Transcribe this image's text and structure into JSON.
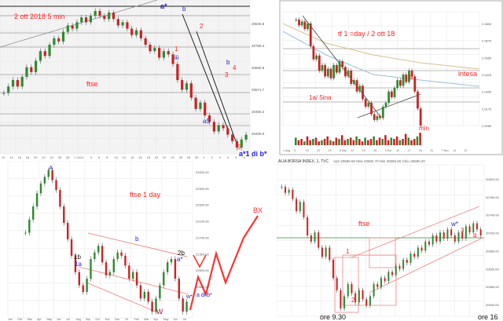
{
  "colors": {
    "up": "#2e8b2e",
    "down": "#cc2222",
    "annot_red": "#ff2222",
    "annot_blue": "#2222cc",
    "wick": "#555555",
    "grid": "#e4e4e4",
    "trendline": "#222222",
    "channel": "#ee8888",
    "bx": "#ff3333"
  },
  "chart_data": [
    {
      "id": "ftse-5min",
      "type": "candlestick",
      "title": "2 ott 2018   5 min",
      "series_label": "ftse",
      "y_ticks": [
        "20825.8",
        "20759.4",
        "20660.9",
        "20571.7",
        "20460.2",
        "20400.0"
      ],
      "x_ticks": [
        "12",
        "14",
        "16",
        "18",
        "20",
        "22",
        "24",
        "26",
        "28",
        "1 Oct",
        "2",
        "4",
        "6",
        "8",
        "10",
        "12",
        "14",
        "16",
        "18",
        "20",
        "22",
        "24",
        "26",
        "28",
        "30",
        "1",
        "2",
        "3",
        "4",
        "5",
        "6",
        "7"
      ],
      "closes": [
        20560,
        20580,
        20600,
        20580,
        20610,
        20640,
        20625,
        20660,
        20690,
        20675,
        20710,
        20730,
        20720,
        20750,
        20770,
        20760,
        20780,
        20795,
        20780,
        20800,
        20815,
        20800,
        20790,
        20810,
        20790,
        20770,
        20780,
        20760,
        20740,
        20755,
        20730,
        20710,
        20690,
        20700,
        20670,
        20690,
        20680,
        20650,
        20600,
        20570,
        20590,
        20545,
        20510,
        20530,
        20490,
        20470,
        20440,
        20460,
        20450,
        20430,
        20410,
        20390,
        20415,
        20430
      ],
      "annotations": [
        "a*",
        "b",
        "1",
        "2",
        "iii",
        "3",
        "b",
        "4",
        "a5",
        "5",
        "a*1 di b*"
      ]
    },
    {
      "id": "intesa",
      "type": "candlestick",
      "title": "tf 1 =day  /  2 ott 18",
      "series_label": "intesa",
      "y_ticks": [
        "2.0800",
        "2.0675",
        "2.0550",
        "2.0425",
        "2.0300",
        "2.0175",
        "2.0050"
      ],
      "x_ticks": [
        "1 Aug",
        "8",
        "15",
        "22",
        "29",
        "5 Sep",
        "12",
        "19",
        "26",
        "3 Oct",
        "10",
        "17",
        "24",
        "31",
        "7 Nov",
        "14",
        "21"
      ],
      "closes": [
        2.082,
        2.079,
        2.081,
        2.077,
        2.08,
        2.068,
        2.061,
        2.063,
        2.055,
        2.058,
        2.052,
        2.056,
        2.051,
        2.058,
        2.054,
        2.06,
        2.057,
        2.052,
        2.055,
        2.048,
        2.05,
        2.044,
        2.047,
        2.04,
        2.036,
        2.038,
        2.032,
        2.029,
        2.031,
        2.03,
        2.036,
        2.038,
        2.044,
        2.041,
        2.046,
        2.05,
        2.047,
        2.053,
        2.049,
        2.055,
        2.052,
        2.044,
        2.035,
        2.026
      ],
      "volumes": [
        6,
        4,
        5,
        3,
        7,
        4,
        5,
        6,
        3,
        4,
        5,
        7,
        4,
        3,
        6,
        5,
        8,
        4,
        5,
        6,
        4,
        7,
        5,
        3,
        6,
        4,
        5,
        7,
        4,
        6,
        5,
        8,
        4,
        6,
        5,
        7,
        4,
        5,
        9,
        6,
        4,
        5,
        7,
        10
      ],
      "annotations": [
        "1a/ 5ina",
        "b",
        "min"
      ]
    },
    {
      "id": "ftse-1day",
      "type": "candlestick",
      "title": "ftse   1 day",
      "y_ticks": [
        "23300.00",
        "22900.00",
        "22500.00",
        "22100.00",
        "21700.00",
        "21300.00",
        "20900.00",
        "20500.00"
      ],
      "x_ticks": [
        "Jan",
        "Feb",
        "Mar",
        "Apr",
        "May",
        "Jun",
        "Jul",
        "Aug",
        "Sep",
        "Oct",
        "Nov",
        "Dec",
        "'19",
        "Feb",
        "Mar",
        "Apr",
        "May",
        "Jun",
        "Jul"
      ],
      "closes": [
        22300,
        22500,
        22700,
        22900,
        23050,
        23150,
        23250,
        23100,
        22950,
        22700,
        22450,
        22200,
        21950,
        21700,
        21500,
        21400,
        21600,
        21900,
        22000,
        22100,
        21850,
        21650,
        21700,
        21900,
        22000,
        21950,
        21800,
        21600,
        21700,
        21500,
        21300,
        21400,
        21250,
        21100,
        21300,
        21500,
        21700,
        21850,
        21900,
        21600,
        21300,
        21100,
        21250
      ],
      "projection_label": "BX",
      "annotations": [
        "A",
        "b",
        "2b",
        "1b",
        "1a",
        "W",
        "a*",
        "w*",
        "a di b*"
      ]
    },
    {
      "id": "ftse-mib-1min",
      "type": "candlestick",
      "title": "ALIA BORSA INDEX, 1, TVC",
      "subtitle": "Apri 20680.50  Max 20692.70  Min 20665.50  Chiu 20690.20",
      "series_label": "ftse",
      "y_ticks": [
        "20820.00",
        "20780.00",
        "20740.00",
        "20700.00",
        "20660.00",
        "20620.00",
        "20580.00",
        "20540.00"
      ],
      "closes": [
        20780,
        20770,
        20775,
        20760,
        20740,
        20755,
        20730,
        20700,
        20690,
        20705,
        20680,
        20665,
        20680,
        20660,
        20630,
        20610,
        20580,
        20600,
        20620,
        20605,
        20590,
        20610,
        20595,
        20585,
        20600,
        20620,
        20615,
        20630,
        20625,
        20640,
        20635,
        20650,
        20645,
        20660,
        20655,
        20670,
        20665,
        20680,
        20675,
        20690,
        20685,
        20700,
        20690,
        20705,
        20695,
        20710,
        20700,
        20690,
        20705,
        20695,
        20715,
        20705,
        20720,
        20710,
        20700
      ],
      "annotations": [
        "1",
        "2",
        "w*",
        "3",
        "4",
        "ore 9.30",
        "ore 16"
      ]
    }
  ],
  "labels": {
    "p1_title": "2 ott 2018   5 min",
    "p1_ftse": "ftse",
    "p1_a_star": "a*",
    "p1_b_top": "b",
    "p1_1": "1",
    "p1_2": "2",
    "p1_iii": "iii",
    "p1_3": "3",
    "p1_b2": "b",
    "p1_4": "4",
    "p1_a5": "a5",
    "p1_5": "5",
    "p1_bottom": "a*1 di b*",
    "p2_title": "tf 1 =day  /  2 ott 18",
    "p2_intesa": "intesa",
    "p2_1a": "1a/ 5ina",
    "p2_b": "b",
    "p2_min": "min",
    "p3_title": "ftse   1 day",
    "p3_A": "A",
    "p3_b": "b",
    "p3_2b": "2b",
    "p3_1b": "1b",
    "p3_1a": "1a",
    "p3_W": "W",
    "p3_astar": "a*",
    "p3_wstar": "w*",
    "p3_adib": "a di b*",
    "p3_BX": "BX",
    "p4_header": "ALIA BORSA INDEX, 1, TVC",
    "p4_ohlc": "Apri 20680.50  Max 20692.70  Min 20665.50  Chiu 20690.20",
    "p4_ftse": "ftse",
    "p4_1": "1",
    "p4_2": "2",
    "p4_wstar": "w*",
    "p4_3": "3",
    "p4_4": "4",
    "p4_ore930": "ore 9.30",
    "p4_ore16": "ore 16"
  }
}
